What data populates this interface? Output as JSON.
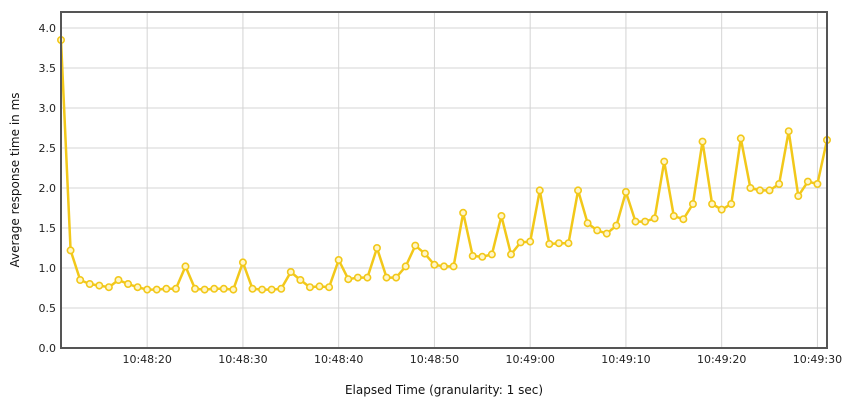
{
  "chart_data": {
    "type": "line",
    "xlabel": "Elapsed Time (granularity: 1 sec)",
    "ylabel": "Average response time in ms",
    "x_start": "10:48:11",
    "x_end": "10:49:31",
    "xlim": [
      "10:48:11",
      "10:49:31"
    ],
    "x_ticks": [
      "10:48:20",
      "10:48:30",
      "10:48:40",
      "10:48:50",
      "10:49:00",
      "10:49:10",
      "10:49:20",
      "10:49:30"
    ],
    "ylim": [
      0,
      4.2
    ],
    "y_ticks": [
      "0.0",
      "0.5",
      "1.0",
      "1.5",
      "2.0",
      "2.5",
      "3.0",
      "3.5",
      "4.0"
    ],
    "grid": true,
    "colors": {
      "line": "#f2c81a",
      "marker_fill": "#fff6c8"
    },
    "series": [
      {
        "x": [
          "10:48:11",
          "10:48:12",
          "10:48:13",
          "10:48:14",
          "10:48:15",
          "10:48:16",
          "10:48:17",
          "10:48:18",
          "10:48:19",
          "10:48:20",
          "10:48:21",
          "10:48:22",
          "10:48:23",
          "10:48:24",
          "10:48:25",
          "10:48:26",
          "10:48:27",
          "10:48:28",
          "10:48:29",
          "10:48:30",
          "10:48:31",
          "10:48:32",
          "10:48:33",
          "10:48:34",
          "10:48:35",
          "10:48:36",
          "10:48:37",
          "10:48:38",
          "10:48:39",
          "10:48:40",
          "10:48:41",
          "10:48:42",
          "10:48:43",
          "10:48:44",
          "10:48:45",
          "10:48:46",
          "10:48:47",
          "10:48:48",
          "10:48:49",
          "10:48:50",
          "10:48:51",
          "10:48:52",
          "10:48:53",
          "10:48:54",
          "10:48:55",
          "10:48:56",
          "10:48:57",
          "10:48:58",
          "10:48:59",
          "10:49:00",
          "10:49:01",
          "10:49:02",
          "10:49:03",
          "10:49:04",
          "10:49:05",
          "10:49:06",
          "10:49:07",
          "10:49:08",
          "10:49:09",
          "10:49:10",
          "10:49:11",
          "10:49:12",
          "10:49:13",
          "10:49:14",
          "10:49:15",
          "10:49:16",
          "10:49:17",
          "10:49:18",
          "10:49:19",
          "10:49:20",
          "10:49:21",
          "10:49:22",
          "10:49:23",
          "10:49:24",
          "10:49:25",
          "10:49:26",
          "10:49:27",
          "10:49:28",
          "10:49:29",
          "10:49:30",
          "10:49:31"
        ],
        "values": [
          3.85,
          1.22,
          0.85,
          0.8,
          0.78,
          0.76,
          0.85,
          0.8,
          0.76,
          0.73,
          0.73,
          0.74,
          0.74,
          1.02,
          0.74,
          0.73,
          0.74,
          0.74,
          0.73,
          1.07,
          0.74,
          0.73,
          0.73,
          0.74,
          0.95,
          0.85,
          0.76,
          0.77,
          0.76,
          1.1,
          0.86,
          0.88,
          0.88,
          1.25,
          0.88,
          0.88,
          1.02,
          1.28,
          1.18,
          1.04,
          1.02,
          1.02,
          1.69,
          1.15,
          1.14,
          1.17,
          1.65,
          1.17,
          1.32,
          1.33,
          1.97,
          1.3,
          1.31,
          1.31,
          1.97,
          1.56,
          1.47,
          1.43,
          1.53,
          1.95,
          1.58,
          1.58,
          1.62,
          2.33,
          1.65,
          1.61,
          1.8,
          2.58,
          1.8,
          1.73,
          1.8,
          2.62,
          2.0,
          1.97,
          1.97,
          2.05,
          2.71,
          1.9,
          2.08,
          2.05,
          2.6
        ]
      }
    ]
  }
}
